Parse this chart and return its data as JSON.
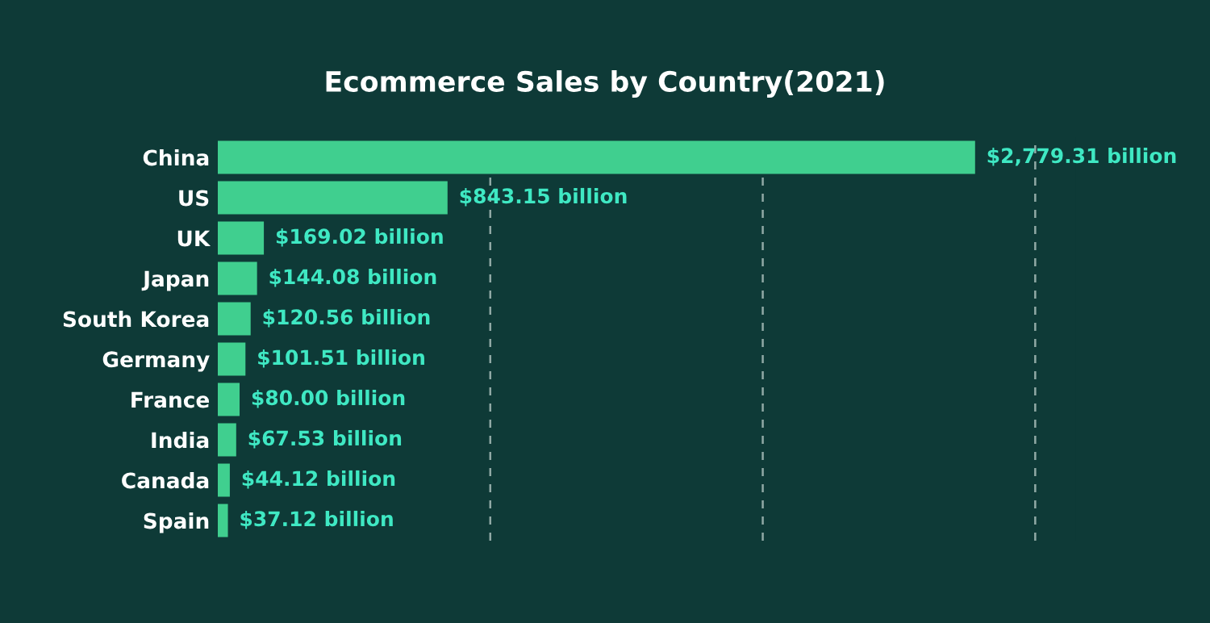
{
  "chart_data": {
    "type": "bar",
    "orientation": "horizontal",
    "title": "Ecommerce Sales by Country(2021)",
    "categories": [
      "China",
      "US",
      "UK",
      "Japan",
      "South Korea",
      "Germany",
      "France",
      "India",
      "Canada",
      "Spain"
    ],
    "values": [
      2779.31,
      843.15,
      169.02,
      144.08,
      120.56,
      101.51,
      80.0,
      67.53,
      44.12,
      37.12
    ],
    "value_labels": [
      "$2,779.31 billion",
      "$843.15 billion",
      "$169.02 billion",
      "$144.08 billion",
      "$120.56 billion",
      "$101.51 billion",
      "$80.00 billion",
      "$67.53 billion",
      "$44.12 billion",
      "$37.12 billion"
    ],
    "color": "#40cf8f",
    "ref_lines": [
      {
        "axis": "x",
        "value": 1000,
        "line_style": "dashed",
        "color": "#c8d8d4"
      },
      {
        "axis": "x",
        "value": 2000,
        "line_style": "dashed",
        "color": "#c8d8d4"
      },
      {
        "axis": "x",
        "value": 3000,
        "line_style": "dashed",
        "color": "#c8d8d4"
      }
    ],
    "tick_labels": "y",
    "legend": false
  }
}
